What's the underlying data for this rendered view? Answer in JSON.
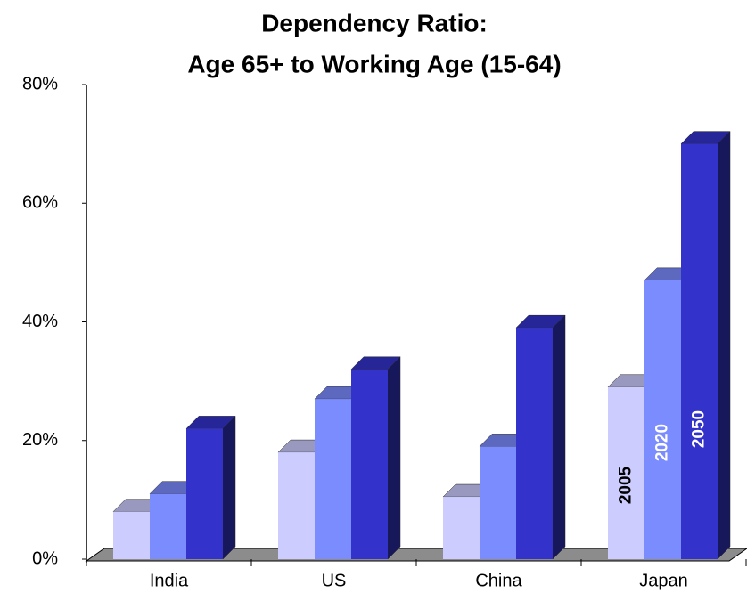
{
  "chart_data": {
    "type": "bar3d",
    "title": [
      "Dependency Ratio:",
      "Age 65+ to Working Age (15-64)"
    ],
    "categories": [
      "India",
      "US",
      "China",
      "Japan"
    ],
    "series": [
      {
        "name": "2005",
        "color": "#ccccff",
        "values": [
          8,
          18,
          10.5,
          29
        ]
      },
      {
        "name": "2020",
        "color": "#7b8cff",
        "values": [
          11,
          27,
          19,
          47
        ]
      },
      {
        "name": "2050",
        "color": "#3333cc",
        "values": [
          22,
          32,
          39,
          70
        ]
      }
    ],
    "ylim": [
      0,
      80
    ],
    "yticks": [
      {
        "value": 0,
        "label": "0%"
      },
      {
        "value": 20,
        "label": "20%"
      },
      {
        "value": 40,
        "label": "40%"
      },
      {
        "value": 60,
        "label": "60%"
      },
      {
        "value": 80,
        "label": "80%"
      }
    ]
  }
}
